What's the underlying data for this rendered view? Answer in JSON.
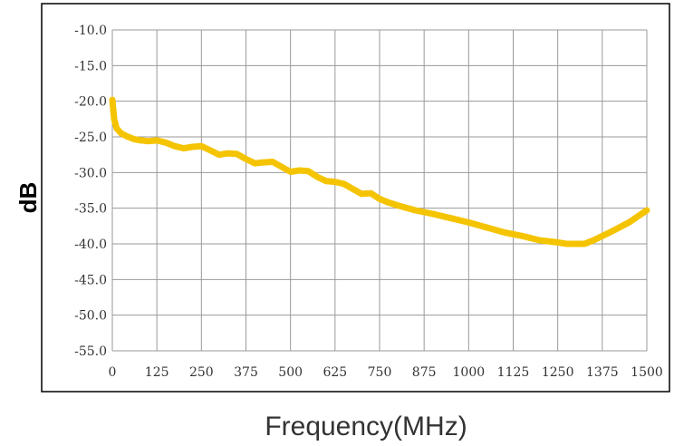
{
  "chart_data": {
    "type": "line",
    "title": "",
    "xlabel": "Frequency(MHz)",
    "ylabel": "dB",
    "xlim": [
      0,
      1500
    ],
    "ylim": [
      -55,
      -10
    ],
    "x_ticks": [
      "0",
      "125",
      "250",
      "375",
      "500",
      "625",
      "750",
      "875",
      "1000",
      "1125",
      "1250",
      "1375",
      "1500"
    ],
    "y_ticks": [
      "-10.0",
      "-15.0",
      "-20.0",
      "-25.0",
      "-30.0",
      "-35.0",
      "-40.0",
      "-45.0",
      "-50.0",
      "-55.0"
    ],
    "grid": true,
    "series": [
      {
        "color": "#f5c400",
        "x": [
          0,
          5,
          12,
          25,
          40,
          60,
          80,
          100,
          125,
          150,
          175,
          200,
          225,
          250,
          275,
          300,
          325,
          350,
          375,
          400,
          420,
          450,
          475,
          500,
          525,
          550,
          575,
          600,
          625,
          650,
          675,
          700,
          725,
          750,
          775,
          800,
          850,
          900,
          950,
          1000,
          1050,
          1100,
          1150,
          1200,
          1250,
          1275,
          1300,
          1325,
          1350,
          1400,
          1450,
          1500
        ],
        "y": [
          -19.8,
          -22.5,
          -23.8,
          -24.5,
          -24.9,
          -25.3,
          -25.5,
          -25.6,
          -25.5,
          -25.8,
          -26.3,
          -26.6,
          -26.4,
          -26.3,
          -26.9,
          -27.5,
          -27.3,
          -27.4,
          -28.1,
          -28.7,
          -28.6,
          -28.5,
          -29.2,
          -29.9,
          -29.7,
          -29.8,
          -30.6,
          -31.2,
          -31.3,
          -31.6,
          -32.3,
          -33.0,
          -32.9,
          -33.7,
          -34.2,
          -34.6,
          -35.3,
          -35.8,
          -36.4,
          -37.0,
          -37.7,
          -38.4,
          -38.9,
          -39.5,
          -39.8,
          -40.0,
          -40.0,
          -40.0,
          -39.5,
          -38.3,
          -37.0,
          -35.3
        ]
      }
    ]
  }
}
